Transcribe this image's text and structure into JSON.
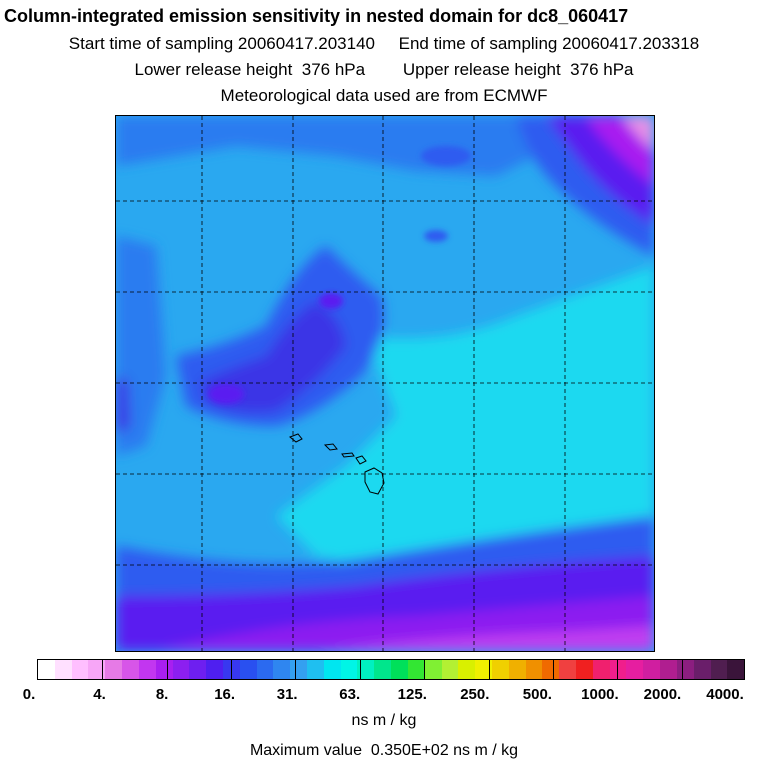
{
  "header": {
    "title": "Column-integrated emission sensitivity in nested domain for dc8_060417",
    "line1": "Start time of sampling 20060417.203140     End time of sampling 20060417.203318",
    "line2": "Lower release height  376 hPa        Upper release height  376 hPa",
    "line3": "Meteorological data used are from ECMWF"
  },
  "colorbar": {
    "colors": [
      "#ffffff",
      "#ffe0ff",
      "#ffbfff",
      "#f7a6f7",
      "#e67ae6",
      "#d755e8",
      "#c236f0",
      "#a81ff0",
      "#8c1ff0",
      "#6e1ff0",
      "#4f1ff0",
      "#3838f0",
      "#2950f0",
      "#2b6af0",
      "#2f86f0",
      "#34a0f0",
      "#1fbff0",
      "#00e6f0",
      "#00f5e6",
      "#00f0c0",
      "#00e68c",
      "#00e05a",
      "#33e633",
      "#80f033",
      "#b3f033",
      "#d9f000",
      "#f0f000",
      "#f0d000",
      "#f0b000",
      "#f09000",
      "#f06a00",
      "#f04040",
      "#f02020",
      "#f0206e",
      "#f01e8c",
      "#e61ea0",
      "#d01ea0",
      "#b01e90",
      "#8c1e80",
      "#6a1e6a",
      "#501e50",
      "#3a143a"
    ],
    "tick_labels": [
      "0.",
      "4.",
      "8.",
      "16.",
      "31.",
      "63.",
      "125.",
      "250.",
      "500.",
      "1000.",
      "2000.",
      "4000."
    ],
    "units": "ns m / kg"
  },
  "footer": {
    "max_value": "Maximum value  0.350E+02 ns m / kg"
  },
  "map": {
    "palette": {
      "cyan": "#1ad9f0",
      "light_blue": "#2aa8f0",
      "mid_blue": "#2a7cf0",
      "blue": "#2f5cf0",
      "dark_blue": "#3a35e6",
      "indigo": "#5a1ef0",
      "violet": "#8c1ff0",
      "magenta": "#c03cf0",
      "pink": "#e690e6",
      "land": "#000000",
      "grid": "#000000"
    }
  }
}
